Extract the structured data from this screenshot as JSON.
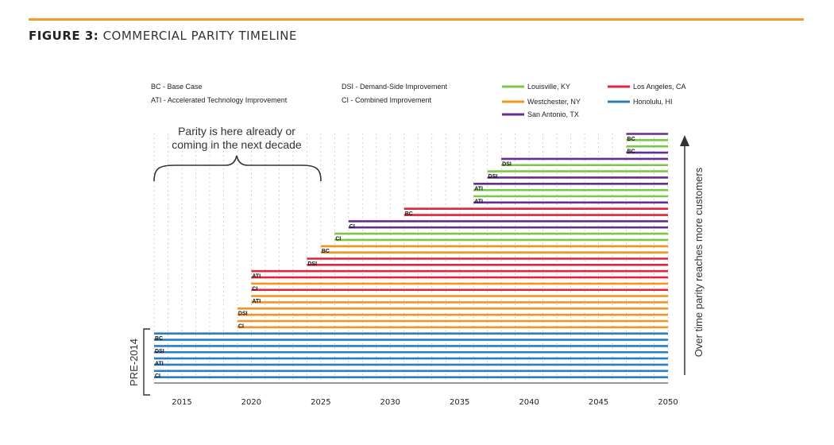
{
  "figure": {
    "prefix": "FIGURE 3:",
    "title": "COMMERCIAL PARITY TIMELINE"
  },
  "colors": {
    "accent_rule": "#f39a2b",
    "Louisville, KY": "#7ac943",
    "Westchester, NY": "#f7931e",
    "San Antonio, TX": "#662d91",
    "Los Angeles, CA": "#e2233a",
    "Honolulu, HI": "#2a7fc4"
  },
  "legend": {
    "abbreviations": [
      {
        "code": "BC",
        "text": "BC - Base Case"
      },
      {
        "code": "ATI",
        "text": "ATI - Accelerated Technology Improvement"
      },
      {
        "code": "DSI",
        "text": "DSI - Demand-Side Improvement"
      },
      {
        "code": "CI",
        "text": "CI - Combined Improvement"
      }
    ],
    "locations": [
      "Louisville, KY",
      "Westchester, NY",
      "San Antonio, TX",
      "Los Angeles, CA",
      "Honolulu, HI"
    ]
  },
  "annotation": {
    "line1": "Parity is here already or",
    "line2": "coming in the next decade"
  },
  "side_label": "Over time parity reaches more customers",
  "pre_label": "PRE-2014",
  "chart_data": {
    "type": "bar",
    "orientation": "horizontal",
    "x_ticks": [
      2015,
      2020,
      2025,
      2030,
      2035,
      2040,
      2045,
      2050
    ],
    "xlim": [
      2013,
      2050
    ],
    "grid": true,
    "series": [
      {
        "location": "San Antonio, TX",
        "scenario": "",
        "start": 2047
      },
      {
        "location": "Louisville, KY",
        "scenario": "BC",
        "start": 2047
      },
      {
        "location": "Louisville, KY",
        "scenario": "",
        "start": 2047
      },
      {
        "location": "San Antonio, TX",
        "scenario": "BC",
        "start": 2047
      },
      {
        "location": "San Antonio, TX",
        "scenario": "",
        "start": 2038
      },
      {
        "location": "Louisville, KY",
        "scenario": "DSI",
        "start": 2038
      },
      {
        "location": "Louisville, KY",
        "scenario": "",
        "start": 2037
      },
      {
        "location": "San Antonio, TX",
        "scenario": "DSI",
        "start": 2037
      },
      {
        "location": "San Antonio, TX",
        "scenario": "",
        "start": 2036
      },
      {
        "location": "Louisville, KY",
        "scenario": "ATI",
        "start": 2036
      },
      {
        "location": "Louisville, KY",
        "scenario": "",
        "start": 2036
      },
      {
        "location": "San Antonio, TX",
        "scenario": "ATI",
        "start": 2036
      },
      {
        "location": "Los Angeles, CA",
        "scenario": "",
        "start": 2031
      },
      {
        "location": "Los Angeles, CA",
        "scenario": "BC",
        "start": 2031
      },
      {
        "location": "San Antonio, TX",
        "scenario": "",
        "start": 2027
      },
      {
        "location": "San Antonio, TX",
        "scenario": "CI",
        "start": 2027
      },
      {
        "location": "Louisville, KY",
        "scenario": "",
        "start": 2026
      },
      {
        "location": "Louisville, KY",
        "scenario": "CI",
        "start": 2026
      },
      {
        "location": "Westchester, NY",
        "scenario": "",
        "start": 2025
      },
      {
        "location": "Westchester, NY",
        "scenario": "BC",
        "start": 2025
      },
      {
        "location": "Los Angeles, CA",
        "scenario": "",
        "start": 2024
      },
      {
        "location": "Los Angeles, CA",
        "scenario": "DSI",
        "start": 2024
      },
      {
        "location": "Los Angeles, CA",
        "scenario": "",
        "start": 2020
      },
      {
        "location": "Los Angeles, CA",
        "scenario": "ATI",
        "start": 2020
      },
      {
        "location": "Westchester, NY",
        "scenario": "",
        "start": 2020
      },
      {
        "location": "Los Angeles, CA",
        "scenario": "CI",
        "start": 2020
      },
      {
        "location": "Westchester, NY",
        "scenario": "",
        "start": 2020
      },
      {
        "location": "Westchester, NY",
        "scenario": "ATI",
        "start": 2020
      },
      {
        "location": "Westchester, NY",
        "scenario": "",
        "start": 2019
      },
      {
        "location": "Westchester, NY",
        "scenario": "DSI",
        "start": 2019
      },
      {
        "location": "Westchester, NY",
        "scenario": "",
        "start": 2019
      },
      {
        "location": "Westchester, NY",
        "scenario": "CI",
        "start": 2019
      },
      {
        "location": "Honolulu, HI",
        "scenario": "",
        "start": 2013
      },
      {
        "location": "Honolulu, HI",
        "scenario": "BC",
        "start": 2013
      },
      {
        "location": "Honolulu, HI",
        "scenario": "",
        "start": 2013
      },
      {
        "location": "Honolulu, HI",
        "scenario": "DSI",
        "start": 2013
      },
      {
        "location": "Honolulu, HI",
        "scenario": "",
        "start": 2013
      },
      {
        "location": "Honolulu, HI",
        "scenario": "ATI",
        "start": 2013
      },
      {
        "location": "Honolulu, HI",
        "scenario": "",
        "start": 2013
      },
      {
        "location": "Honolulu, HI",
        "scenario": "CI",
        "start": 2013
      }
    ]
  }
}
